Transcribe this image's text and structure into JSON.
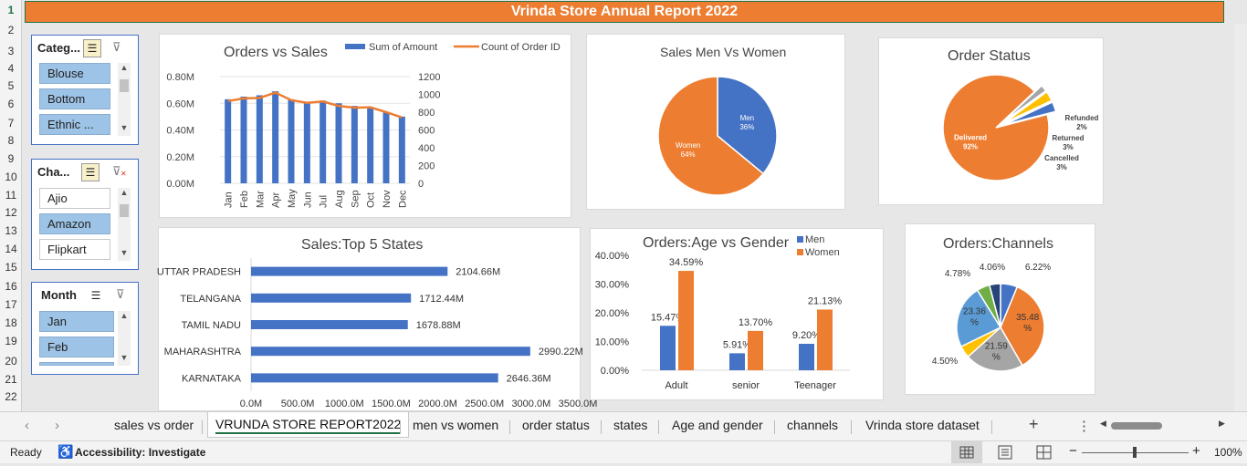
{
  "report_title": "Vrinda Store Annual Report 2022",
  "rows": [
    "1",
    "2",
    "3",
    "4",
    "5",
    "6",
    "7",
    "8",
    "9",
    "10",
    "11",
    "12",
    "13",
    "14",
    "15",
    "16",
    "17",
    "18",
    "19",
    "20",
    "21",
    "22"
  ],
  "slicers": {
    "category": {
      "title": "Categ...",
      "items": [
        {
          "label": "Blouse",
          "selected": true
        },
        {
          "label": "Bottom",
          "selected": true
        },
        {
          "label": "Ethnic ...",
          "selected": true
        }
      ]
    },
    "channel": {
      "title": "Cha...",
      "items": [
        {
          "label": "Ajio",
          "selected": false
        },
        {
          "label": "Amazon",
          "selected": true
        },
        {
          "label": "Flipkart",
          "selected": false
        }
      ]
    },
    "month": {
      "title": "Month",
      "items": [
        {
          "label": "Jan",
          "selected": true
        },
        {
          "label": "Feb",
          "selected": true
        }
      ]
    }
  },
  "charts": {
    "orders_vs_sales": {
      "title": "Orders vs Sales",
      "legend": [
        "Sum of Amount",
        "Count of Order ID"
      ]
    },
    "men_vs_women": {
      "title": "Sales Men Vs Women"
    },
    "order_status": {
      "title": "Order Status"
    },
    "top_states": {
      "title": "Sales:Top 5 States"
    },
    "age_gender": {
      "title": "Orders:Age vs Gender",
      "legend": [
        "Men",
        "Women"
      ]
    },
    "channels": {
      "title": "Orders:Channels"
    }
  },
  "chart_data": [
    {
      "type": "bar",
      "title": "Orders vs Sales",
      "categories": [
        "Jan",
        "Feb",
        "Mar",
        "Apr",
        "May",
        "Jun",
        "Jul",
        "Aug",
        "Sep",
        "Oct",
        "Nov",
        "Dec"
      ],
      "series": [
        {
          "name": "Sum of Amount",
          "axis": "left",
          "kind": "bar",
          "values": [
            0.63,
            0.65,
            0.66,
            0.69,
            0.63,
            0.61,
            0.62,
            0.6,
            0.58,
            0.57,
            0.53,
            0.5
          ]
        },
        {
          "name": "Count of Order ID",
          "axis": "right",
          "kind": "line",
          "values": [
            925,
            955,
            960,
            1020,
            935,
            905,
            920,
            870,
            850,
            855,
            800,
            740
          ]
        }
      ],
      "y_left_ticks": [
        "0.00M",
        "0.20M",
        "0.40M",
        "0.60M",
        "0.80M"
      ],
      "y_right_ticks": [
        "0",
        "200",
        "400",
        "600",
        "800",
        "1000",
        "1200"
      ],
      "ylim_left": [
        0,
        0.8
      ],
      "ylim_right": [
        0,
        1200
      ],
      "colors": {
        "bar": "#4472c4",
        "line": "#ed7d31"
      }
    },
    {
      "type": "pie",
      "title": "Sales Men Vs Women",
      "labels": [
        "Men",
        "Women"
      ],
      "values": [
        36,
        64
      ],
      "value_labels": [
        "36%",
        "64%"
      ],
      "colors": [
        "#4472c4",
        "#ed7d31"
      ]
    },
    {
      "type": "pie",
      "title": "Order Status",
      "labels": [
        "Delivered",
        "Refunded",
        "Returned",
        "Cancelled"
      ],
      "values": [
        92,
        2,
        3,
        3
      ],
      "value_labels": [
        "92%",
        "2%",
        "3%",
        "3%"
      ],
      "colors": [
        "#ed7d31",
        "#a5a5a5",
        "#ffc000",
        "#4472c4"
      ]
    },
    {
      "type": "bar",
      "orientation": "horizontal",
      "title": "Sales:Top 5 States",
      "categories": [
        "UTTAR PRADESH",
        "TELANGANA",
        "TAMIL NADU",
        "MAHARASHTRA",
        "KARNATAKA"
      ],
      "values": [
        2104.66,
        1712.44,
        1678.88,
        2990.22,
        2646.36
      ],
      "value_labels": [
        "2104.66M",
        "1712.44M",
        "1678.88M",
        "2990.22M",
        "2646.36M"
      ],
      "x_ticks": [
        "0.0M",
        "500.0M",
        "1000.0M",
        "1500.0M",
        "2000.0M",
        "2500.0M",
        "3000.0M",
        "3500.0M"
      ],
      "xlim": [
        0,
        3500
      ],
      "color": "#4472c4"
    },
    {
      "type": "bar",
      "title": "Orders:Age vs Gender",
      "categories": [
        "Adult",
        "senior",
        "Teenager"
      ],
      "series": [
        {
          "name": "Men",
          "values": [
            15.47,
            5.91,
            9.2
          ],
          "value_labels": [
            "15.47%",
            "5.91%",
            "9.20%"
          ]
        },
        {
          "name": "Women",
          "values": [
            34.59,
            13.7,
            21.13
          ],
          "value_labels": [
            "34.59%",
            "13.70%",
            "21.13%"
          ]
        }
      ],
      "y_ticks": [
        "0.00%",
        "10.00%",
        "20.00%",
        "30.00%",
        "40.00%"
      ],
      "ylim": [
        0,
        40
      ],
      "colors": [
        "#4472c4",
        "#ed7d31"
      ]
    },
    {
      "type": "pie",
      "title": "Orders:Channels",
      "values": [
        6.22,
        35.48,
        21.59,
        4.5,
        23.36,
        4.78,
        4.06
      ],
      "value_labels": [
        "6.22%",
        "35.48\n%",
        "21.59\n%",
        "4.50%",
        "23.36\n%",
        "4.78%",
        "4.06%"
      ],
      "colors": [
        "#4472c4",
        "#ed7d31",
        "#a5a5a5",
        "#ffc000",
        "#5b9bd5",
        "#70ad47",
        "#264478"
      ]
    }
  ],
  "tabs": [
    {
      "label": "sales vs order",
      "active": false
    },
    {
      "label": "VRUNDA STORE REPORT2022",
      "active": true
    },
    {
      "label": "men vs women",
      "active": false
    },
    {
      "label": "order status",
      "active": false
    },
    {
      "label": "states",
      "active": false
    },
    {
      "label": "Age and gender",
      "active": false
    },
    {
      "label": "channels",
      "active": false
    },
    {
      "label": "Vrinda store dataset",
      "active": false
    }
  ],
  "status": {
    "ready": "Ready",
    "accessibility": "Accessibility: Investigate",
    "zoom": "100%"
  },
  "icons": {
    "add_sheet": "+",
    "more": "⋮",
    "prev_sheet": "‹",
    "next_sheet": "›"
  }
}
